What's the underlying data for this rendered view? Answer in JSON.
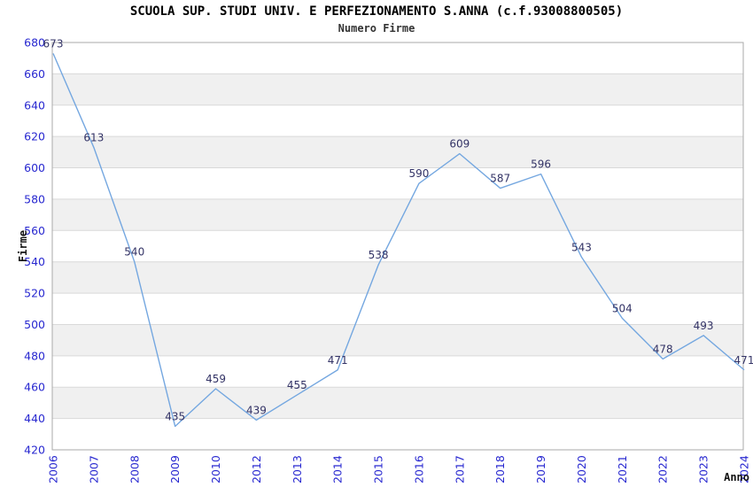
{
  "header": {
    "title": "SCUOLA SUP. STUDI UNIV. E PERFEZIONAMENTO S.ANNA (c.f.93008800505)",
    "subtitle": "Numero Firme"
  },
  "chart_data": {
    "type": "line",
    "title": "SCUOLA SUP. STUDI UNIV. E PERFEZIONAMENTO S.ANNA (c.f.93008800505)",
    "subtitle": "Numero Firme",
    "xlabel": "Anno",
    "ylabel": "Firme",
    "categories": [
      "2006",
      "2007",
      "2008",
      "2009",
      "2010",
      "2012",
      "2013",
      "2014",
      "2015",
      "2016",
      "2017",
      "2018",
      "2019",
      "2020",
      "2021",
      "2022",
      "2023",
      "2024"
    ],
    "values": [
      673,
      613,
      540,
      435,
      459,
      439,
      455,
      471,
      538,
      590,
      609,
      587,
      596,
      543,
      504,
      478,
      493,
      471
    ],
    "ylim": [
      420,
      680
    ],
    "ytick_step": 20,
    "yticks": [
      420,
      440,
      460,
      480,
      500,
      520,
      540,
      560,
      580,
      600,
      620,
      640,
      660,
      680
    ],
    "grid": "horizontal, alternating shaded bands",
    "legend": "none",
    "data_labels": true,
    "colors": {
      "line": "#74a7e0",
      "tick_label": "#2828d0",
      "value_label": "#333366",
      "band": "#f0f0f0",
      "grid_line": "#d9d9d9",
      "plot_border": "#aaaaaa",
      "axis_title": "#111111",
      "title": "#000000",
      "subtitle": "#333333"
    }
  }
}
